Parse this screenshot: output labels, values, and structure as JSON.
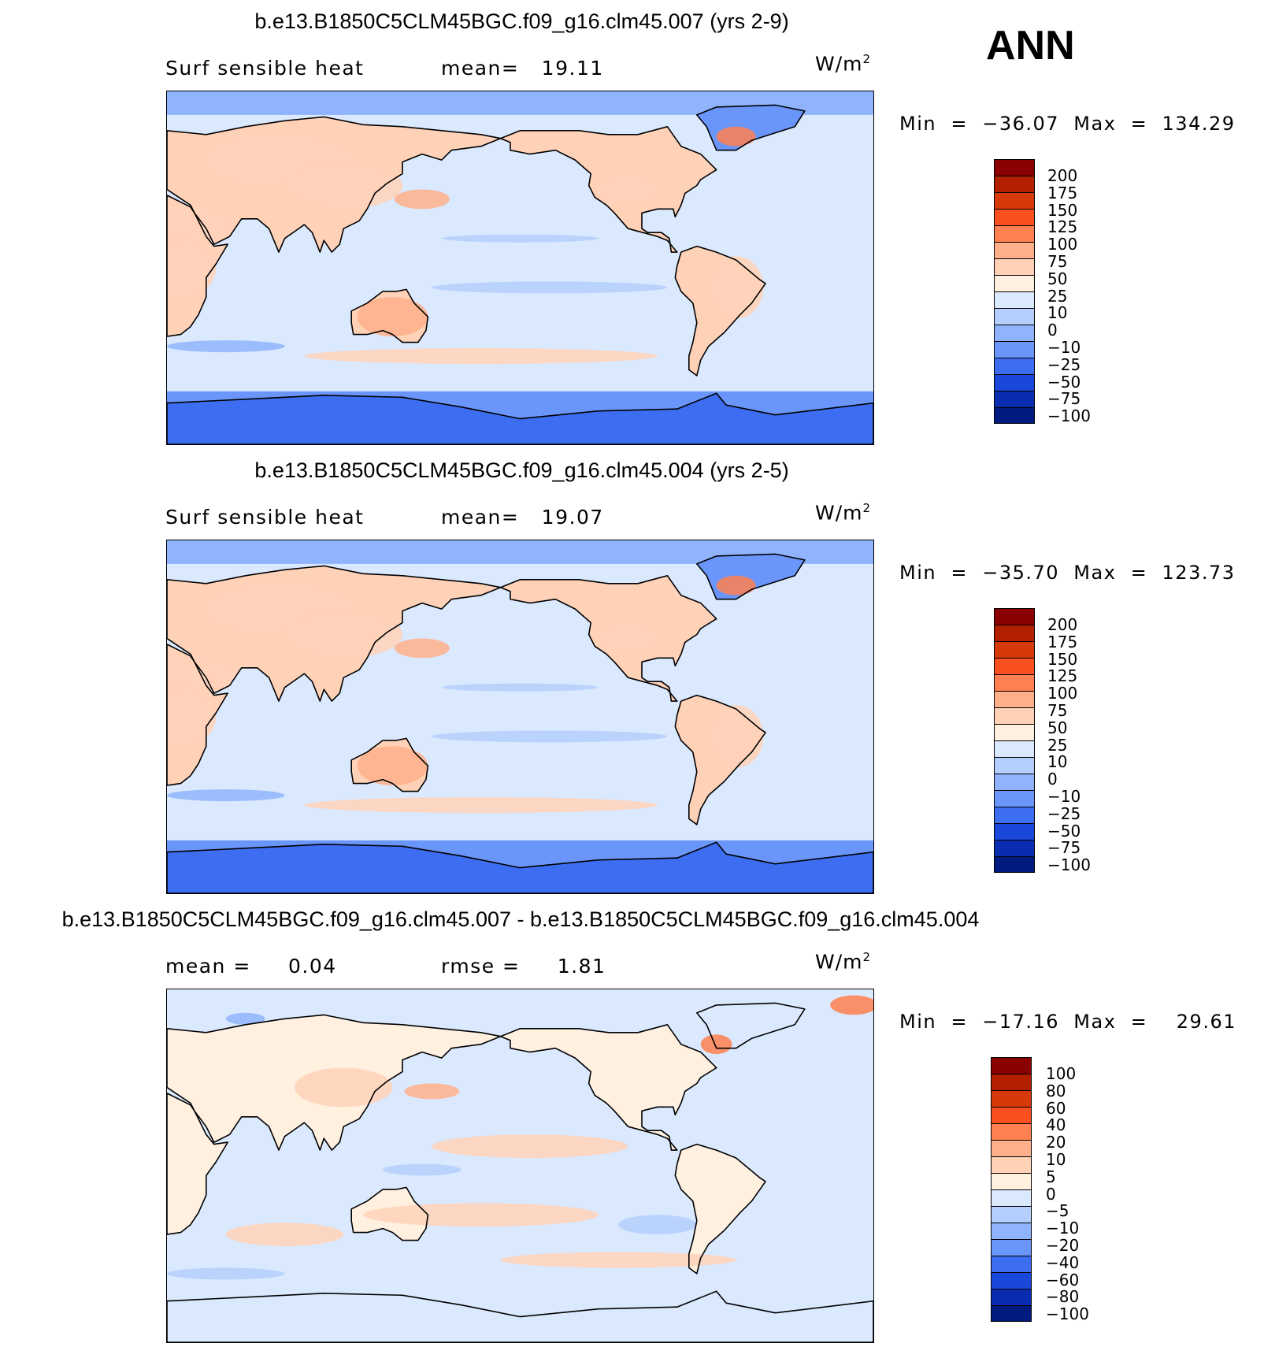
{
  "season": "ANN",
  "panels": [
    {
      "title": "b.e13.B1850C5CLM45BGC.f09_g16.clm45.007 (yrs 2-9)",
      "left_label": "Surf sensible heat",
      "stat1": "mean=   19.11",
      "stat2": "",
      "units": "W/m",
      "units_sup": "2",
      "minmax": "Min  =  −36.07  Max  =  134.29",
      "colors": [
        "#8b0000",
        "#b22000",
        "#d63a0a",
        "#fa5020",
        "#ff8050",
        "#ffb08a",
        "#ffd2b8",
        "#fff0e0",
        "#dbe9ff",
        "#b4cffd",
        "#8fb4fd",
        "#6a96fb",
        "#3d6ef2",
        "#1a48db",
        "#0a2cb0",
        "#001a80"
      ],
      "ticks": [
        "200",
        "175",
        "150",
        "125",
        "100",
        "75",
        "50",
        "25",
        "10",
        "0",
        "−10",
        "−25",
        "−50",
        "−75",
        "−100"
      ]
    },
    {
      "title": "b.e13.B1850C5CLM45BGC.f09_g16.clm45.004 (yrs 2-5)",
      "left_label": "Surf sensible heat",
      "stat1": "mean=   19.07",
      "stat2": "",
      "units": "W/m",
      "units_sup": "2",
      "minmax": "Min  =  −35.70  Max  =  123.73",
      "colors": [
        "#8b0000",
        "#b22000",
        "#d63a0a",
        "#fa5020",
        "#ff8050",
        "#ffb08a",
        "#ffd2b8",
        "#fff0e0",
        "#dbe9ff",
        "#b4cffd",
        "#8fb4fd",
        "#6a96fb",
        "#3d6ef2",
        "#1a48db",
        "#0a2cb0",
        "#001a80"
      ],
      "ticks": [
        "200",
        "175",
        "150",
        "125",
        "100",
        "75",
        "50",
        "25",
        "10",
        "0",
        "−10",
        "−25",
        "−50",
        "−75",
        "−100"
      ]
    },
    {
      "title": "b.e13.B1850C5CLM45BGC.f09_g16.clm45.007 - b.e13.B1850C5CLM45BGC.f09_g16.clm45.004",
      "left_label": "mean =     0.04",
      "stat1": "rmse =     1.81",
      "stat2": "",
      "units": "W/m",
      "units_sup": "2",
      "minmax": "Min  =  −17.16  Max  =    29.61",
      "colors": [
        "#8b0000",
        "#b22000",
        "#d63a0a",
        "#fa5020",
        "#ff8050",
        "#ffb08a",
        "#ffd2b8",
        "#fff0e0",
        "#dbe9ff",
        "#b4cffd",
        "#8fb4fd",
        "#6a96fb",
        "#3d6ef2",
        "#1a48db",
        "#0a2cb0",
        "#001a80"
      ],
      "ticks": [
        "100",
        "80",
        "60",
        "40",
        "20",
        "10",
        "5",
        "0",
        "−5",
        "−10",
        "−20",
        "−40",
        "−60",
        "−80",
        "−100"
      ]
    }
  ]
}
